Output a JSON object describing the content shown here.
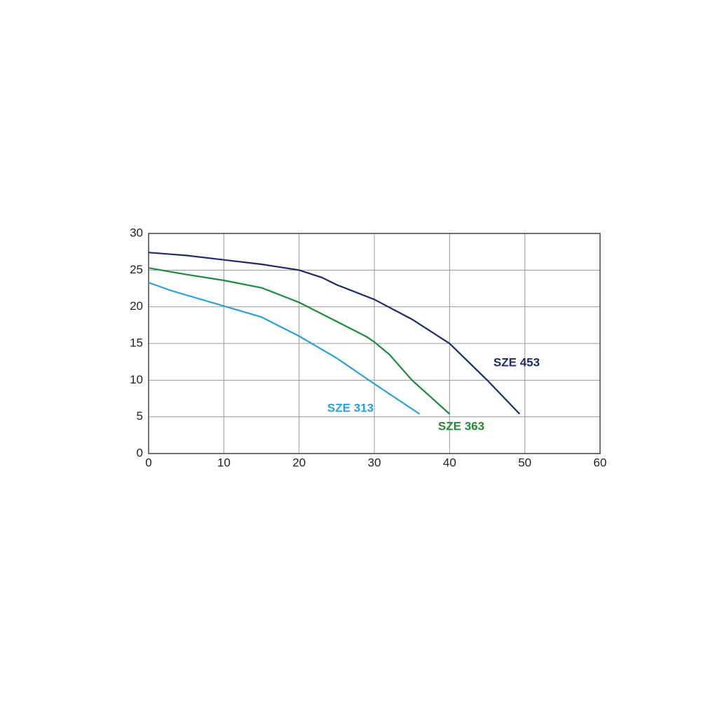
{
  "chart_data": {
    "type": "line",
    "xlim": [
      0,
      60
    ],
    "xticks": [
      0,
      10,
      20,
      30,
      40,
      50,
      60
    ],
    "ylim": [
      0,
      30
    ],
    "yticks": [
      0,
      5,
      10,
      15,
      20,
      25,
      30
    ],
    "grid": true,
    "series": [
      {
        "name": "SZE 313",
        "color": "#2a9fd8",
        "x": [
          0,
          3,
          10,
          15,
          20,
          25,
          30,
          36
        ],
        "values": [
          23.3,
          22.2,
          20.1,
          18.6,
          16.0,
          13.0,
          9.5,
          5.4
        ]
      },
      {
        "name": "SZE 363",
        "color": "#1f8a3a",
        "x": [
          0,
          5,
          10,
          15,
          20,
          25,
          29,
          30,
          32,
          35,
          40
        ],
        "values": [
          25.3,
          24.4,
          23.6,
          22.6,
          20.6,
          18.0,
          15.9,
          15.2,
          13.5,
          10.0,
          5.4
        ]
      },
      {
        "name": "SZE 453",
        "color": "#1a2a6c",
        "x": [
          0,
          5,
          10,
          15,
          20,
          23,
          25,
          30,
          35,
          40,
          45,
          49.3
        ],
        "values": [
          27.4,
          27.0,
          26.4,
          25.8,
          25.0,
          24.0,
          23.0,
          21.0,
          18.3,
          15.0,
          10.0,
          5.4
        ]
      }
    ]
  }
}
